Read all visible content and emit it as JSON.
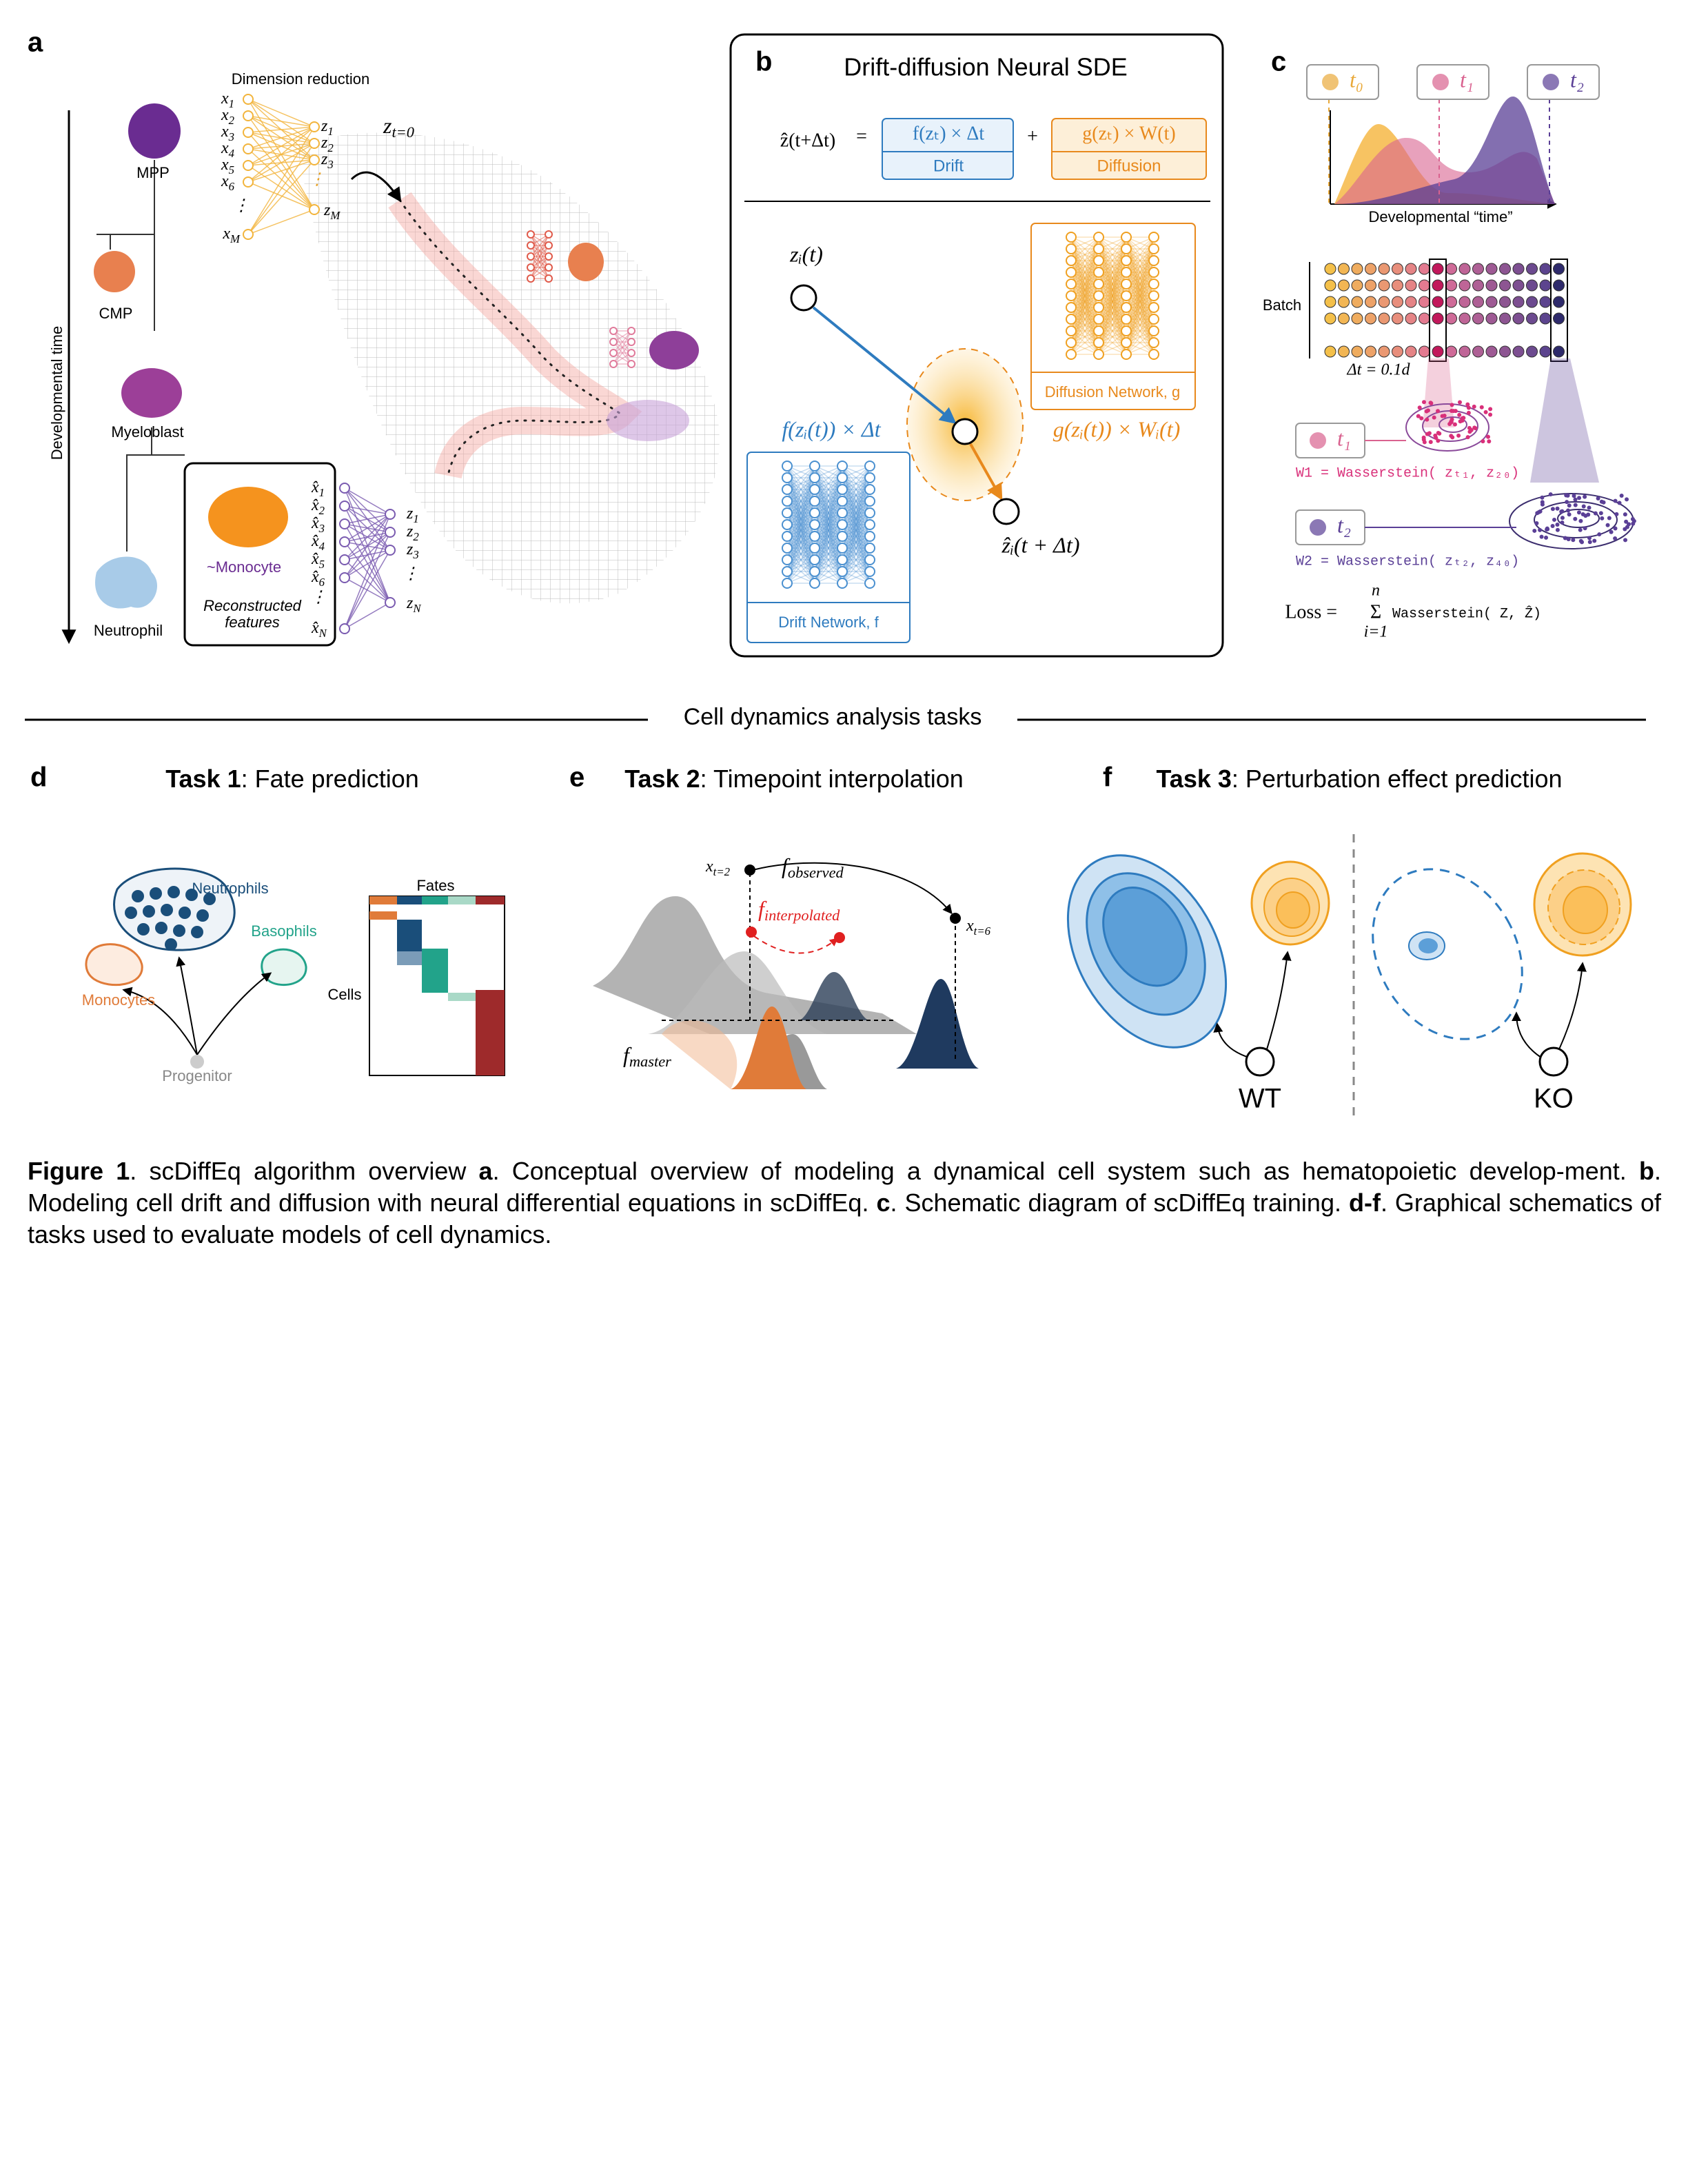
{
  "panel_a": {
    "label": "a",
    "dimension_reduction": "Dimension reduction",
    "inputs": [
      {
        "base": "x",
        "sub": "1"
      },
      {
        "base": "x",
        "sub": "2"
      },
      {
        "base": "x",
        "sub": "3"
      },
      {
        "base": "x",
        "sub": "4"
      },
      {
        "base": "x",
        "sub": "5"
      },
      {
        "base": "x",
        "sub": "6"
      }
    ],
    "input_dots": "⋮",
    "input_last": {
      "base": "x",
      "sub": "M"
    },
    "latents": [
      {
        "base": "z",
        "sub": "1"
      },
      {
        "base": "z",
        "sub": "2"
      },
      {
        "base": "z",
        "sub": "3"
      }
    ],
    "latent_dots": "⋮",
    "latent_last": {
      "base": "z",
      "sub": "M"
    },
    "start": {
      "base": "z",
      "sub": "t=0"
    },
    "cells": [
      "MPP",
      "CMP",
      "Myeloblast",
      "Neutrophil"
    ],
    "monocyte": "~Monocyte",
    "reconstructed": [
      "Reconstructed",
      "features"
    ],
    "recon_inputs": [
      {
        "base": "x̂",
        "sub": "1"
      },
      {
        "base": "x̂",
        "sub": "2"
      },
      {
        "base": "x̂",
        "sub": "3"
      },
      {
        "base": "x̂",
        "sub": "4"
      },
      {
        "base": "x̂",
        "sub": "5"
      },
      {
        "base": "x̂",
        "sub": "6"
      }
    ],
    "recon_dots": "⋮",
    "recon_last": {
      "base": "x̂",
      "sub": "N"
    },
    "recon_latents": [
      {
        "base": "z",
        "sub": "1"
      },
      {
        "base": "z",
        "sub": "2"
      },
      {
        "base": "z",
        "sub": "3"
      }
    ],
    "recon_latent_dots": "⋮",
    "recon_latent_last": {
      "base": "z",
      "sub": "N"
    },
    "time_axis": "Developmental time"
  },
  "panel_b": {
    "label": "b",
    "title": "Drift-diffusion Neural SDE",
    "lhs": "ẑ(t+Δt)",
    "equals": "=",
    "drift_term": "f(zₜ) × Δt",
    "drift": "Drift",
    "plus": "+",
    "diffusion_term": "g(zₜ) × W(t)",
    "diffusion": "Diffusion",
    "start": "zᵢ(t)",
    "drift_step": "f(zᵢ(t)) × Δt",
    "diffusion_step": "g(zᵢ(t)) × Wᵢ(t)",
    "end": "ẑᵢ(t + Δt)",
    "diffusion_network": "Diffusion Network, g",
    "drift_network": "Drift Network, f"
  },
  "panel_c": {
    "label": "c",
    "timepoints": [
      "t₀",
      "t₁",
      "t₂"
    ],
    "time_axis": "Developmental “time”",
    "batch": "Batch",
    "step": "Δt = 0.1d",
    "t1": "t₁",
    "t2": "t₂",
    "w1": "W1 = Wasserstein( zₜ₁, z₂₀)",
    "w2": "W2 = Wasserstein( zₜ₂, z₄₀)",
    "loss": {
      "lhs": "Loss =",
      "sum": "Σ",
      "upper": "n",
      "lower": "i=1",
      "term": "Wasserstein( Z, Ẑ)"
    }
  },
  "divider": "Cell dynamics analysis tasks",
  "panel_d": {
    "label": "d",
    "task": "Task 1",
    "title": ": Fate prediction",
    "neutrophils": "Neutrophils",
    "basophils": "Basophils",
    "monocytes": "Monocytes",
    "progenitor": "Progenitor",
    "fates": "Fates",
    "cells": "Cells"
  },
  "panel_e": {
    "label": "e",
    "task": "Task 2",
    "title": ": Timepoint interpolation",
    "start": {
      "base": "x",
      "sub": "t=2"
    },
    "observed": {
      "base": "f",
      "sub": "observed"
    },
    "interpolated": {
      "base": "f",
      "sub": "interpolated"
    },
    "end": {
      "base": "x",
      "sub": "t=6"
    },
    "master": {
      "base": "f",
      "sub": "master"
    }
  },
  "panel_f": {
    "label": "f",
    "task": "Task 3",
    "title": ": Perturbation effect prediction",
    "wt": "WT",
    "ko": "KO"
  },
  "caption": [
    "Figure 1",
    ". scDiffEq algorithm overview ",
    "a",
    ". Conceptual overview of modeling a dynamical cell system such as hematopoietic develop-ment. ",
    "b",
    ". Modeling cell drift and diffusion with neural differential equations in scDiffEq. ",
    "c",
    ". Schematic diagram of scDiffEq training. ",
    "d-f",
    ". Graphical schematics of tasks used to evaluate models of cell dynamics."
  ]
}
